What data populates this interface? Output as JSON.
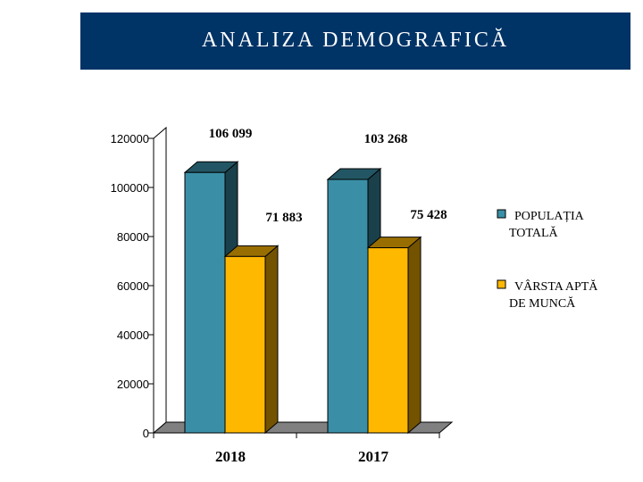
{
  "chart_data": {
    "type": "bar",
    "title": "ANALIZA DEMOGRAFICĂ",
    "categories": [
      "2018",
      "2017"
    ],
    "series": [
      {
        "name_lines": [
          "POPULAȚIA",
          "TOTALĂ"
        ],
        "values": [
          106099,
          103268
        ],
        "labels": [
          "106 099",
          "103 268"
        ],
        "color": "#3a8fa6"
      },
      {
        "name_lines": [
          "VÂRSTA  APTĂ",
          "DE MUNCĂ"
        ],
        "values": [
          71883,
          75428
        ],
        "labels": [
          "71 883",
          "75 428"
        ],
        "color": "#ffb800"
      }
    ],
    "y_ticks": [
      "0",
      "20000",
      "40000",
      "60000",
      "80000",
      "100000",
      "120000"
    ],
    "ylim": [
      0,
      120000
    ],
    "grid": false,
    "bar_style": "3d",
    "legend_position": "right"
  }
}
